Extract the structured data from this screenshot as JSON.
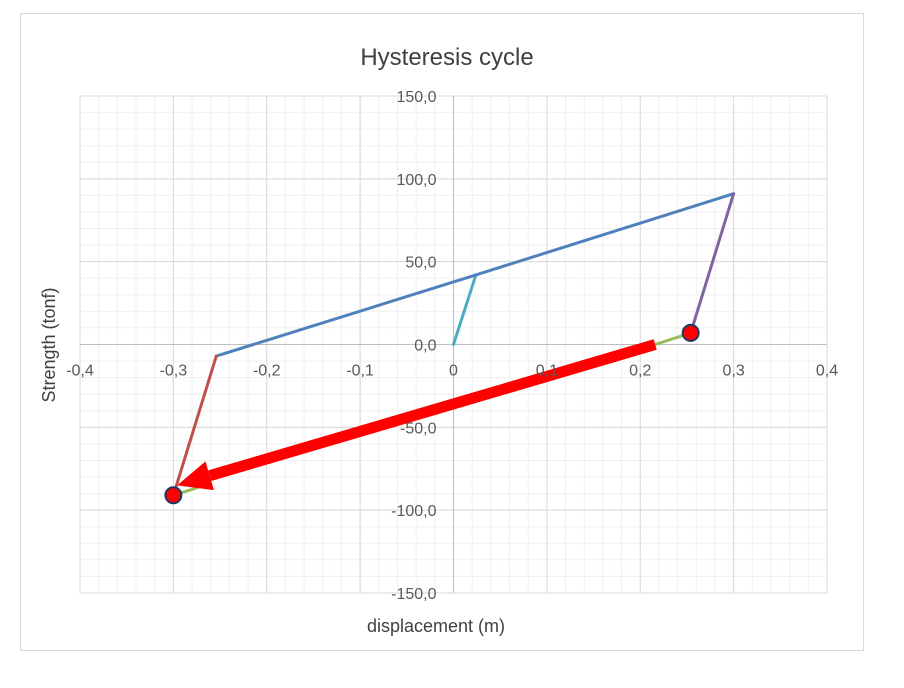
{
  "chart_data": {
    "type": "line",
    "title": "Hysteresis cycle",
    "xlabel": "displacement (m)",
    "ylabel": "Strength (tonf)",
    "xlim": [
      -0.4,
      0.4
    ],
    "ylim": [
      -150,
      150
    ],
    "x_ticks": [
      -0.4,
      -0.3,
      -0.2,
      -0.1,
      0,
      0.1,
      0.2,
      0.3,
      0.4
    ],
    "x_tick_labels": [
      "-0,4",
      "-0,3",
      "-0,2",
      "-0,1",
      "0",
      "0,1",
      "0,2",
      "0,3",
      "0,4"
    ],
    "y_ticks": [
      150,
      100,
      50,
      0,
      -50,
      -100,
      -150
    ],
    "y_tick_labels": [
      "150,0",
      "100,0",
      "50,0",
      "0,0",
      "-50,0",
      "-100,0",
      "-150,0"
    ],
    "grid": true,
    "minor_grid": true,
    "legend": "none",
    "series": [
      {
        "color": "#4bacc6",
        "points": [
          [
            0,
            0
          ],
          [
            0.024,
            42
          ]
        ]
      },
      {
        "color": "#4f81bd",
        "points": [
          [
            0.024,
            42
          ],
          [
            0.3,
            91
          ]
        ]
      },
      {
        "color": "#8064a2",
        "points": [
          [
            0.3,
            91
          ],
          [
            0.254,
            7
          ]
        ]
      },
      {
        "color": "#9bbb59",
        "points": [
          [
            0.254,
            7
          ],
          [
            0.216,
            0
          ]
        ]
      },
      {
        "color": "#4f81bd",
        "points": [
          [
            -0.254,
            -7
          ],
          [
            0.024,
            42
          ]
        ]
      },
      {
        "color": "#c0504d",
        "points": [
          [
            -0.254,
            -7
          ],
          [
            -0.3,
            -91
          ]
        ]
      },
      {
        "color": "#9bbb59",
        "points": [
          [
            -0.3,
            -91
          ],
          [
            -0.272,
            -86
          ]
        ]
      }
    ],
    "markers": [
      {
        "x": 0.254,
        "y": 7,
        "fill": "#ff0000",
        "stroke": "#1f3864"
      },
      {
        "x": -0.3,
        "y": -91,
        "fill": "#ff0000",
        "stroke": "#1f3864"
      }
    ],
    "annotations": [
      {
        "type": "arrow",
        "from": [
          0.216,
          0
        ],
        "to": [
          -0.296,
          -85
        ],
        "color": "#ff0000"
      }
    ]
  }
}
